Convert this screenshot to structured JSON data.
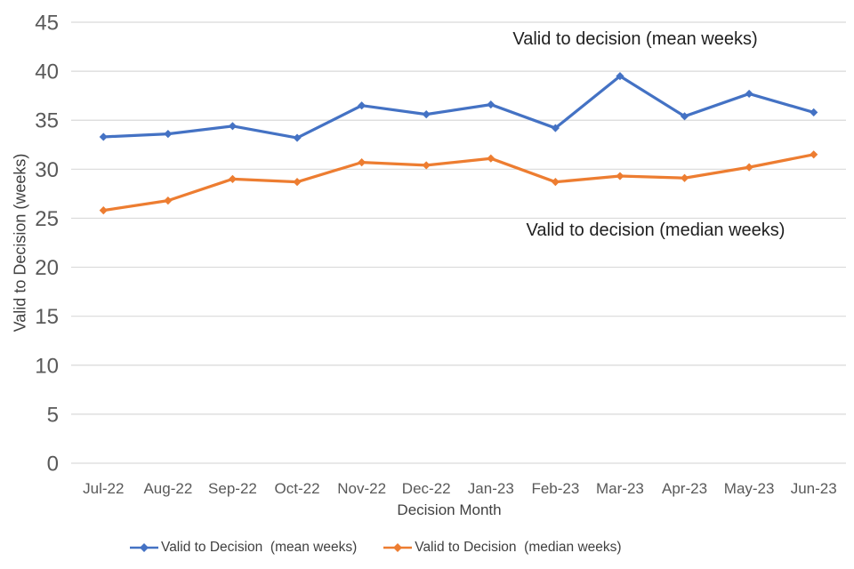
{
  "chart_data": {
    "type": "line",
    "title": "",
    "categories": [
      "Jul-22",
      "Aug-22",
      "Sep-22",
      "Oct-22",
      "Nov-22",
      "Dec-22",
      "Jan-23",
      "Feb-23",
      "Mar-23",
      "Apr-23",
      "May-23",
      "Jun-23"
    ],
    "series": [
      {
        "name": "Valid to Decision  (mean weeks)",
        "color": "#4472C4",
        "values": [
          33.3,
          33.6,
          34.4,
          33.2,
          36.5,
          35.6,
          36.6,
          34.2,
          39.5,
          35.4,
          37.7,
          35.8
        ]
      },
      {
        "name": "Valid to Decision  (median weeks)",
        "color": "#ED7D31",
        "values": [
          25.8,
          26.8,
          29.0,
          28.7,
          30.7,
          30.4,
          31.1,
          28.7,
          29.3,
          29.1,
          30.2,
          31.5
        ]
      }
    ],
    "xlabel": "Decision Month",
    "ylabel": "Valid to Decision (weeks)",
    "ylim": [
      0,
      45
    ],
    "ytick_step": 5,
    "yticks": [
      0,
      5,
      10,
      15,
      20,
      25,
      30,
      35,
      40,
      45
    ],
    "grid": true,
    "legend_position": "bottom",
    "legend": [
      "Valid to Decision  (mean weeks)",
      "Valid to Decision  (median weeks)"
    ],
    "annotations": [
      {
        "text": "Valid to decision (mean weeks)"
      },
      {
        "text": "Valid to decision (median weeks)"
      }
    ],
    "colors": {
      "gridline": "#D9D9D9",
      "tick_text": "#595959",
      "axis_title_text": "#404040",
      "annotation_text": "#1f1f1f",
      "background": "#FFFFFF"
    }
  }
}
